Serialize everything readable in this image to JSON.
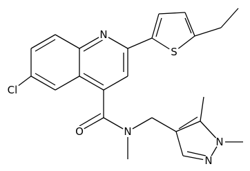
{
  "atoms": [
    {
      "label": "N"
    },
    {
      "label": "S"
    },
    {
      "label": "Cl"
    },
    {
      "label": "O"
    },
    {
      "label": "N"
    },
    {
      "label": "N"
    },
    {
      "label": "N"
    }
  ]
}
